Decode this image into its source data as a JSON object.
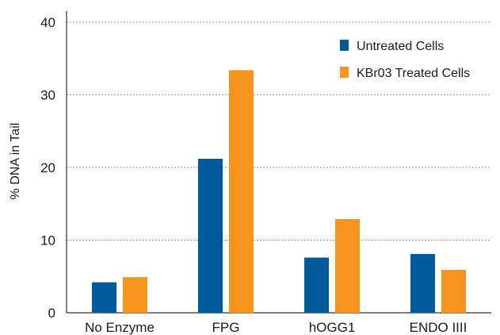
{
  "chart_data": {
    "type": "bar",
    "categories": [
      "No Enzyme",
      "FPG",
      "hOGG1",
      "ENDO IIII"
    ],
    "series": [
      {
        "name": "Untreated Cells",
        "color": "#005a9c",
        "values": [
          4.2,
          21.2,
          7.6,
          8.1
        ]
      },
      {
        "name": "KBr03 Treated Cells",
        "color": "#f7941d",
        "values": [
          4.9,
          33.4,
          12.9,
          5.9
        ]
      }
    ],
    "title": "",
    "xlabel": "",
    "ylabel": "% DNA in Tail",
    "ylim": [
      0,
      40
    ],
    "yticks": [
      0,
      10,
      20,
      30,
      40
    ],
    "grid": true,
    "legend_position": "top-right"
  }
}
